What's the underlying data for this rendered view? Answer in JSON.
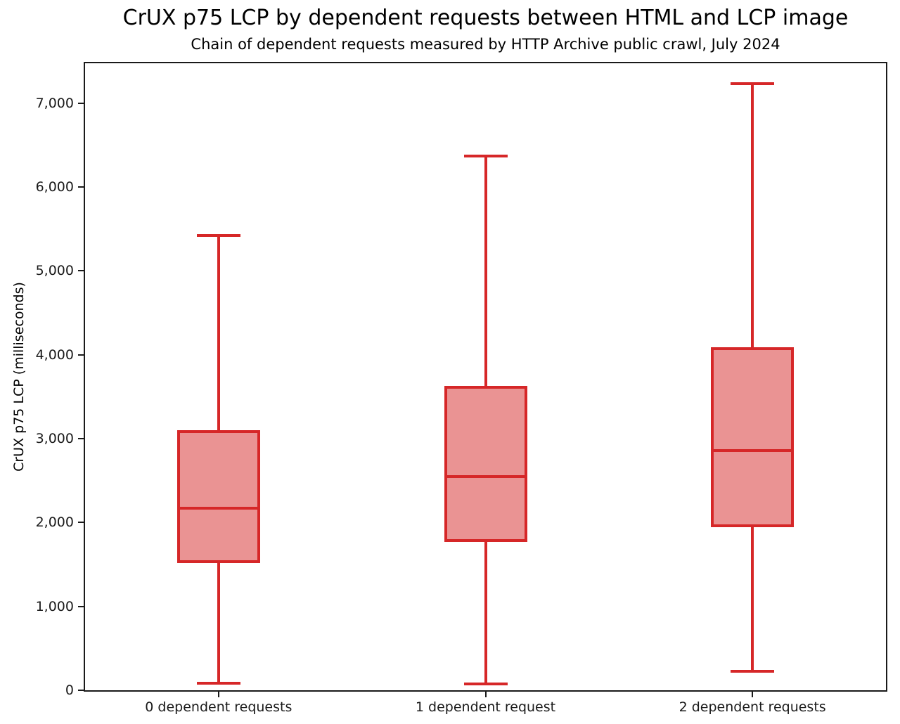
{
  "title": "CrUX p75 LCP by dependent requests between HTML and LCP image",
  "subtitle": "Chain of dependent requests measured by HTTP Archive public crawl, July 2024",
  "chart_data": {
    "type": "boxplot",
    "title": "CrUX p75 LCP by dependent requests between HTML and LCP image",
    "subtitle": "Chain of dependent requests measured by HTTP Archive public crawl, July 2024",
    "xlabel": "",
    "ylabel": "CrUX p75 LCP (milliseconds)",
    "categories": [
      "0 dependent requests",
      "1 dependent request",
      "2 dependent requests"
    ],
    "series": [
      {
        "name": "0 dependent requests",
        "whisker_low": 85,
        "q1": 1535,
        "median": 2170,
        "q3": 3080,
        "whisker_high": 5425
      },
      {
        "name": "1 dependent request",
        "whisker_low": 75,
        "q1": 1785,
        "median": 2545,
        "q3": 3615,
        "whisker_high": 6365
      },
      {
        "name": "2 dependent requests",
        "whisker_low": 225,
        "q1": 1965,
        "median": 2855,
        "q3": 4070,
        "whisker_high": 7230
      }
    ],
    "unit": "milliseconds",
    "ylim": [
      0,
      7475
    ],
    "yticks": [
      0,
      1000,
      2000,
      3000,
      4000,
      5000,
      6000,
      7000
    ],
    "ytick_labels": [
      "0",
      "1,000",
      "2,000",
      "3,000",
      "4,000",
      "5,000",
      "6,000",
      "7,000"
    ],
    "grid": false,
    "legend": null,
    "colors": {
      "box_edge": "#d62728",
      "box_fill": "#ea9393",
      "axis": "#1a1a1a",
      "text": "#000000"
    }
  }
}
